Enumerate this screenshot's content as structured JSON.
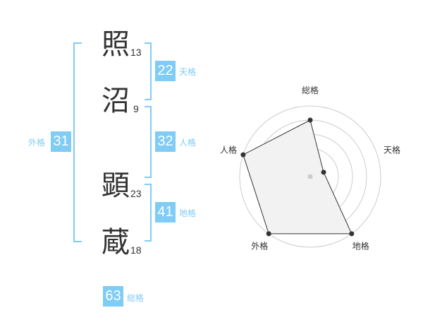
{
  "name": {
    "characters": [
      {
        "char": "照",
        "strokes": "13"
      },
      {
        "char": "沼",
        "strokes": "9"
      },
      {
        "char": "顕",
        "strokes": "23"
      },
      {
        "char": "蔵",
        "strokes": "18"
      }
    ]
  },
  "scores": {
    "tenkaku": {
      "value": "22",
      "label": "天格"
    },
    "jinkaku": {
      "value": "32",
      "label": "人格"
    },
    "chikaku": {
      "value": "41",
      "label": "地格"
    },
    "gaikaku": {
      "value": "31",
      "label": "外格"
    },
    "soukaku": {
      "value": "63",
      "label": "総格"
    }
  },
  "colors": {
    "accent": "#7fccf5",
    "text": "#333333",
    "radar_fill": "#f2f2f2",
    "grid": "#cccccc"
  },
  "chart_data": {
    "type": "radar",
    "axes": [
      "総格",
      "天格",
      "地格",
      "外格",
      "人格"
    ],
    "values": [
      4,
      1,
      5,
      5,
      5
    ],
    "range": [
      0,
      5
    ],
    "rings": 5
  }
}
